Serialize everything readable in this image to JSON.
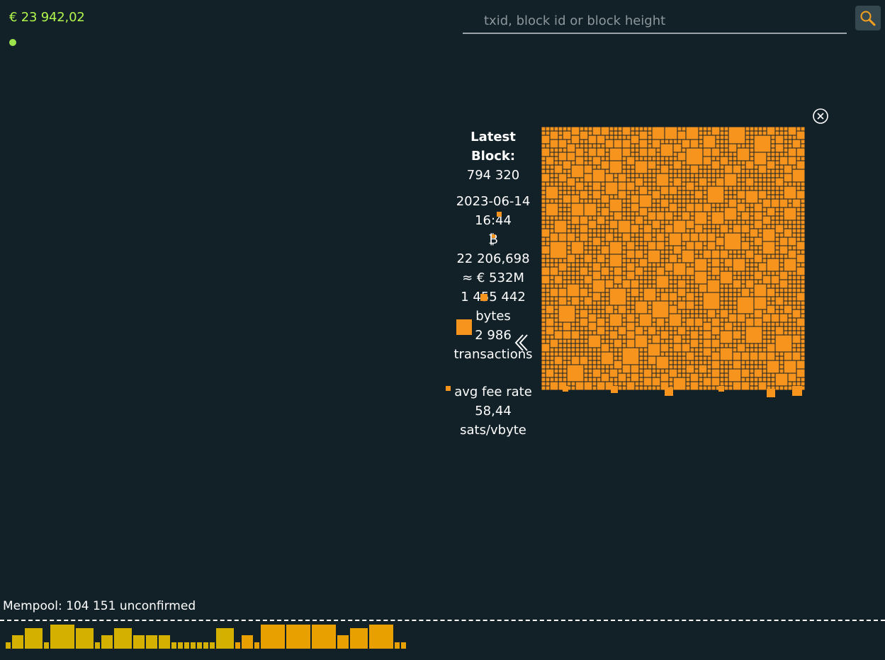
{
  "header": {
    "price": "€ 23 942,02",
    "status_color": "#9de34b",
    "search_placeholder": "txid, block id or block height",
    "search_icon": "magnifier-icon"
  },
  "latest_block": {
    "title": "Latest Block:",
    "height": "794 320",
    "date": "2023-06-14",
    "time": "16:44",
    "currency_symbol": "₿",
    "value_btc": "22 206,698",
    "value_fiat": "≈ € 532M",
    "size_bytes": "1 455 442",
    "size_unit": "bytes",
    "tx_count": "2 986",
    "tx_label": "transactions",
    "fee_label": "avg fee rate",
    "fee_value": "58,44",
    "fee_unit": "sats/vbyte",
    "tx_color": "#f7941d"
  },
  "mempool": {
    "label": "Mempool: 104 151 unconfirmed",
    "bar_colors": [
      "#d4b000",
      "#e8a000"
    ],
    "bar_heights": [
      0.25,
      0.55,
      0.85,
      0.25,
      1.0,
      0.85,
      0.25,
      0.55,
      0.85,
      0.55,
      0.55,
      0.55,
      0.25,
      0.25,
      0.25,
      0.25,
      0.25,
      0.25,
      0.25,
      0.85,
      0.25,
      0.55,
      0.25,
      1.0,
      1.0,
      1.0,
      0.55,
      0.85,
      1.0,
      0.25,
      0.25
    ]
  }
}
